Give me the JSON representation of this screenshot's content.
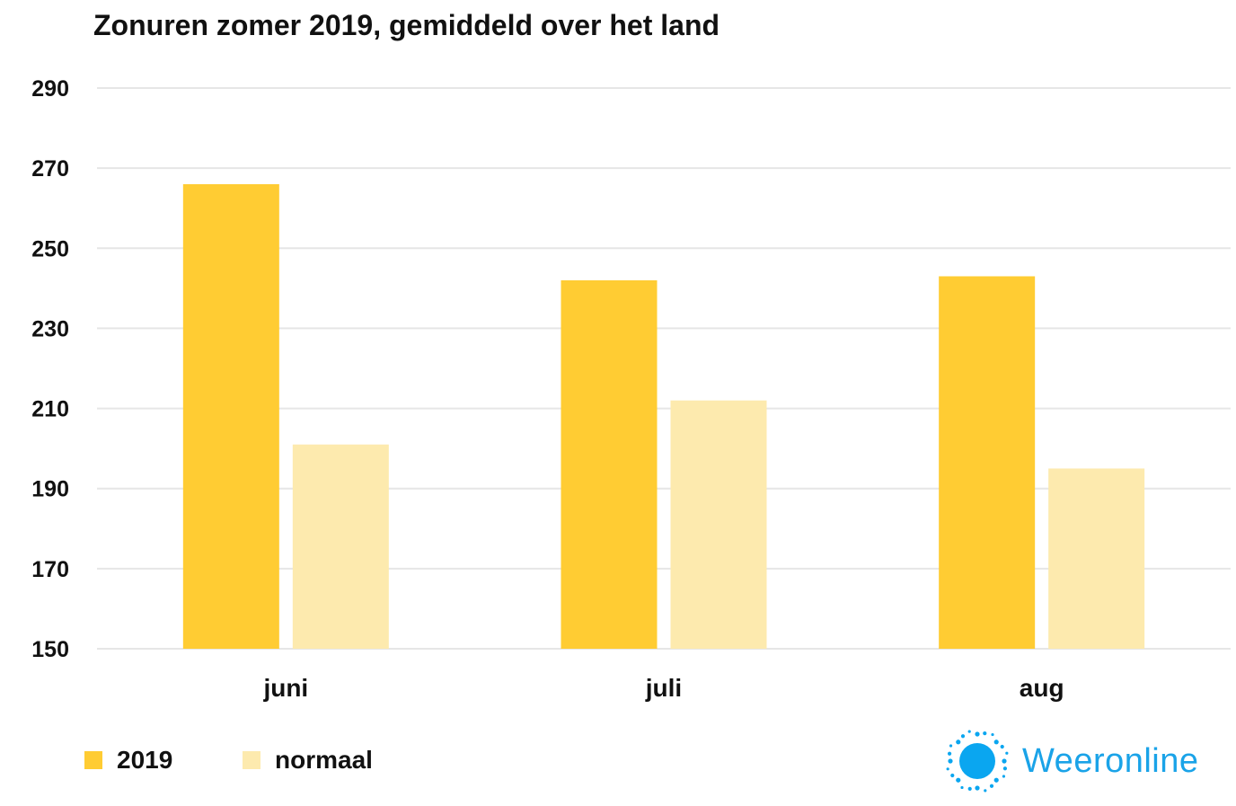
{
  "brand": {
    "name": "Weeronline",
    "color": "#1aa3e8"
  },
  "colors": {
    "series_2019": "#ffcc33",
    "series_normaal": "#fdeaae",
    "grid": "#e6e6e6"
  },
  "chart_data": {
    "type": "bar",
    "title": "Zonuren zomer 2019, gemiddeld over het land",
    "xlabel": "",
    "ylabel": "",
    "categories": [
      "juni",
      "juli",
      "aug"
    ],
    "series": [
      {
        "name": "2019",
        "values": [
          266,
          242,
          243
        ]
      },
      {
        "name": "normaal",
        "values": [
          201,
          212,
          195
        ]
      }
    ],
    "ylim": [
      150,
      290
    ],
    "yticks": [
      150,
      170,
      190,
      210,
      230,
      250,
      270,
      290
    ],
    "grid": true,
    "legend_position": "bottom-left"
  }
}
